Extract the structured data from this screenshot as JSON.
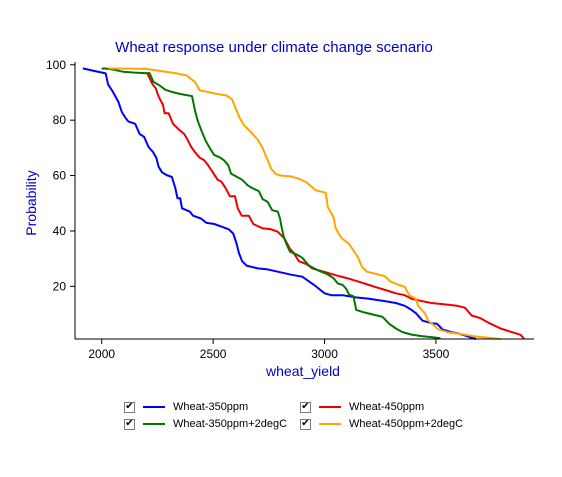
{
  "chart_data": {
    "type": "line",
    "title": "Wheat response under climate change scenario",
    "xlabel": "wheat_yield",
    "ylabel": "Probability",
    "xlim": [
      1880,
      3940
    ],
    "ylim": [
      1,
      101
    ],
    "xticks": [
      "2000",
      "2500",
      "3000",
      "3500"
    ],
    "yticks": [
      "20",
      "40",
      "60",
      "80",
      "100"
    ],
    "grid": false,
    "legend_position": "bottom",
    "series": [
      {
        "name": "Wheat-350ppm",
        "color": "#0000ff",
        "points": [
          [
            1915,
            98.7
          ],
          [
            1965,
            97.8
          ],
          [
            2018,
            96.9
          ],
          [
            2028,
            93
          ],
          [
            2050,
            90.2
          ],
          [
            2075,
            86.6
          ],
          [
            2090,
            83
          ],
          [
            2105,
            81
          ],
          [
            2120,
            79.5
          ],
          [
            2150,
            78.7
          ],
          [
            2170,
            75
          ],
          [
            2190,
            74
          ],
          [
            2210,
            70.3
          ],
          [
            2230,
            68.5
          ],
          [
            2245,
            66.4
          ],
          [
            2255,
            63.2
          ],
          [
            2270,
            61.2
          ],
          [
            2290,
            60.2
          ],
          [
            2315,
            59.5
          ],
          [
            2330,
            55.5
          ],
          [
            2340,
            51.8
          ],
          [
            2352,
            51.8
          ],
          [
            2360,
            48.2
          ],
          [
            2395,
            47
          ],
          [
            2410,
            45.5
          ],
          [
            2445,
            44.5
          ],
          [
            2470,
            42.9
          ],
          [
            2505,
            42.5
          ],
          [
            2540,
            41.5
          ],
          [
            2570,
            40.6
          ],
          [
            2590,
            39.1
          ],
          [
            2605,
            35.5
          ],
          [
            2615,
            32.2
          ],
          [
            2630,
            29.1
          ],
          [
            2650,
            27.5
          ],
          [
            2700,
            26.5
          ],
          [
            2740,
            26.2
          ],
          [
            2790,
            25.3
          ],
          [
            2850,
            24.2
          ],
          [
            2900,
            23.5
          ],
          [
            2930,
            21.8
          ],
          [
            2960,
            20.1
          ],
          [
            3000,
            17.5
          ],
          [
            3030,
            16.8
          ],
          [
            3080,
            16.8
          ],
          [
            3140,
            16
          ],
          [
            3200,
            15.5
          ],
          [
            3260,
            14.8
          ],
          [
            3320,
            14
          ],
          [
            3360,
            13
          ],
          [
            3390,
            11.5
          ],
          [
            3410,
            10.3
          ],
          [
            3440,
            7.6
          ],
          [
            3480,
            6.7
          ],
          [
            3505,
            6.5
          ],
          [
            3530,
            4.4
          ],
          [
            3570,
            3.5
          ],
          [
            3600,
            3
          ],
          [
            3640,
            2
          ],
          [
            3660,
            1.4
          ],
          [
            3680,
            1
          ]
        ]
      },
      {
        "name": "Wheat-450ppm",
        "color": "#ee0000",
        "points": [
          [
            2205,
            96.9
          ],
          [
            2228,
            93
          ],
          [
            2242,
            91.5
          ],
          [
            2255,
            88.5
          ],
          [
            2275,
            85.5
          ],
          [
            2282,
            82.5
          ],
          [
            2300,
            82.5
          ],
          [
            2320,
            78.7
          ],
          [
            2345,
            76.7
          ],
          [
            2370,
            75
          ],
          [
            2385,
            73
          ],
          [
            2400,
            70.5
          ],
          [
            2418,
            68.5
          ],
          [
            2440,
            66.4
          ],
          [
            2460,
            65.5
          ],
          [
            2475,
            64
          ],
          [
            2498,
            61.2
          ],
          [
            2520,
            58.5
          ],
          [
            2538,
            57.7
          ],
          [
            2558,
            55.2
          ],
          [
            2575,
            52.5
          ],
          [
            2598,
            52.5
          ],
          [
            2610,
            48.2
          ],
          [
            2628,
            45.5
          ],
          [
            2660,
            45.5
          ],
          [
            2680,
            42.5
          ],
          [
            2720,
            41
          ],
          [
            2760,
            40.6
          ],
          [
            2790,
            39.7
          ],
          [
            2820,
            37.3
          ],
          [
            2845,
            33.5
          ],
          [
            2860,
            32.2
          ],
          [
            2885,
            29.1
          ],
          [
            2920,
            28
          ],
          [
            2945,
            26.5
          ],
          [
            3000,
            25.2
          ],
          [
            3060,
            23.8
          ],
          [
            3100,
            23
          ],
          [
            3150,
            21.8
          ],
          [
            3200,
            20.5
          ],
          [
            3240,
            19.5
          ],
          [
            3280,
            18.5
          ],
          [
            3320,
            17.5
          ],
          [
            3360,
            16.8
          ],
          [
            3390,
            15.5
          ],
          [
            3430,
            14.8
          ],
          [
            3480,
            14
          ],
          [
            3540,
            13.5
          ],
          [
            3595,
            13
          ],
          [
            3630,
            12.3
          ],
          [
            3660,
            9.5
          ],
          [
            3700,
            8.5
          ],
          [
            3740,
            6.7
          ],
          [
            3790,
            4.8
          ],
          [
            3840,
            3.5
          ],
          [
            3880,
            2.5
          ],
          [
            3895,
            1.1
          ]
        ]
      },
      {
        "name": "Wheat-350ppm+2degC",
        "color": "#007700",
        "points": [
          [
            2000,
            98.5
          ],
          [
            2010,
            98.7
          ],
          [
            2050,
            98.3
          ],
          [
            2095,
            97.5
          ],
          [
            2140,
            97.2
          ],
          [
            2190,
            97
          ],
          [
            2215,
            97
          ],
          [
            2232,
            93.8
          ],
          [
            2260,
            92.5
          ],
          [
            2285,
            91
          ],
          [
            2310,
            90.3
          ],
          [
            2350,
            89.5
          ],
          [
            2405,
            88.7
          ],
          [
            2420,
            83
          ],
          [
            2432,
            79.5
          ],
          [
            2450,
            75.7
          ],
          [
            2468,
            72.3
          ],
          [
            2488,
            69.5
          ],
          [
            2505,
            67.4
          ],
          [
            2530,
            66.6
          ],
          [
            2550,
            65.4
          ],
          [
            2568,
            63.7
          ],
          [
            2580,
            60.7
          ],
          [
            2610,
            59.4
          ],
          [
            2630,
            58.5
          ],
          [
            2655,
            56.5
          ],
          [
            2675,
            55.5
          ],
          [
            2705,
            54.4
          ],
          [
            2722,
            51.5
          ],
          [
            2745,
            50.5
          ],
          [
            2765,
            47.5
          ],
          [
            2790,
            47
          ],
          [
            2800,
            44.5
          ],
          [
            2808,
            41
          ],
          [
            2818,
            37.5
          ],
          [
            2828,
            35.5
          ],
          [
            2845,
            32.5
          ],
          [
            2875,
            31.5
          ],
          [
            2900,
            30.3
          ],
          [
            2930,
            27.5
          ],
          [
            2970,
            25.8
          ],
          [
            3010,
            24.5
          ],
          [
            3040,
            23
          ],
          [
            3060,
            21
          ],
          [
            3082,
            20.5
          ],
          [
            3098,
            19
          ],
          [
            3110,
            17
          ],
          [
            3130,
            16.4
          ],
          [
            3142,
            11.5
          ],
          [
            3178,
            10.6
          ],
          [
            3210,
            10
          ],
          [
            3235,
            9.5
          ],
          [
            3260,
            9
          ],
          [
            3290,
            6.5
          ],
          [
            3320,
            4.8
          ],
          [
            3350,
            3.5
          ],
          [
            3390,
            2.6
          ],
          [
            3440,
            2
          ],
          [
            3480,
            1.7
          ],
          [
            3520,
            1.3
          ]
        ]
      },
      {
        "name": "Wheat-450ppm+2degC",
        "color": "#ffa500",
        "points": [
          [
            2030,
            98.7
          ],
          [
            2100,
            98.6
          ],
          [
            2200,
            98.5
          ],
          [
            2260,
            97.8
          ],
          [
            2330,
            97
          ],
          [
            2380,
            96.2
          ],
          [
            2418,
            93.8
          ],
          [
            2440,
            90.7
          ],
          [
            2470,
            90.3
          ],
          [
            2510,
            89.6
          ],
          [
            2560,
            88.9
          ],
          [
            2585,
            87.5
          ],
          [
            2600,
            84.5
          ],
          [
            2618,
            81
          ],
          [
            2640,
            78
          ],
          [
            2660,
            76.5
          ],
          [
            2700,
            73
          ],
          [
            2722,
            70
          ],
          [
            2740,
            66.5
          ],
          [
            2760,
            62.5
          ],
          [
            2782,
            60.5
          ],
          [
            2805,
            60
          ],
          [
            2850,
            59.7
          ],
          [
            2890,
            58.7
          ],
          [
            2920,
            57.5
          ],
          [
            2960,
            54.7
          ],
          [
            3005,
            53.8
          ],
          [
            3015,
            48.5
          ],
          [
            3040,
            45
          ],
          [
            3050,
            41
          ],
          [
            3075,
            37.5
          ],
          [
            3108,
            35.5
          ],
          [
            3130,
            33
          ],
          [
            3150,
            30.5
          ],
          [
            3168,
            27
          ],
          [
            3190,
            25.3
          ],
          [
            3230,
            24.5
          ],
          [
            3270,
            23.7
          ],
          [
            3295,
            21.8
          ],
          [
            3335,
            20.5
          ],
          [
            3360,
            19.8
          ],
          [
            3380,
            16.8
          ],
          [
            3410,
            15.5
          ],
          [
            3420,
            13
          ],
          [
            3450,
            10.3
          ],
          [
            3465,
            7.6
          ],
          [
            3490,
            6
          ],
          [
            3510,
            4.5
          ],
          [
            3550,
            3.5
          ],
          [
            3610,
            2.8
          ],
          [
            3670,
            2
          ],
          [
            3730,
            1.5
          ],
          [
            3790,
            1
          ]
        ]
      }
    ]
  }
}
